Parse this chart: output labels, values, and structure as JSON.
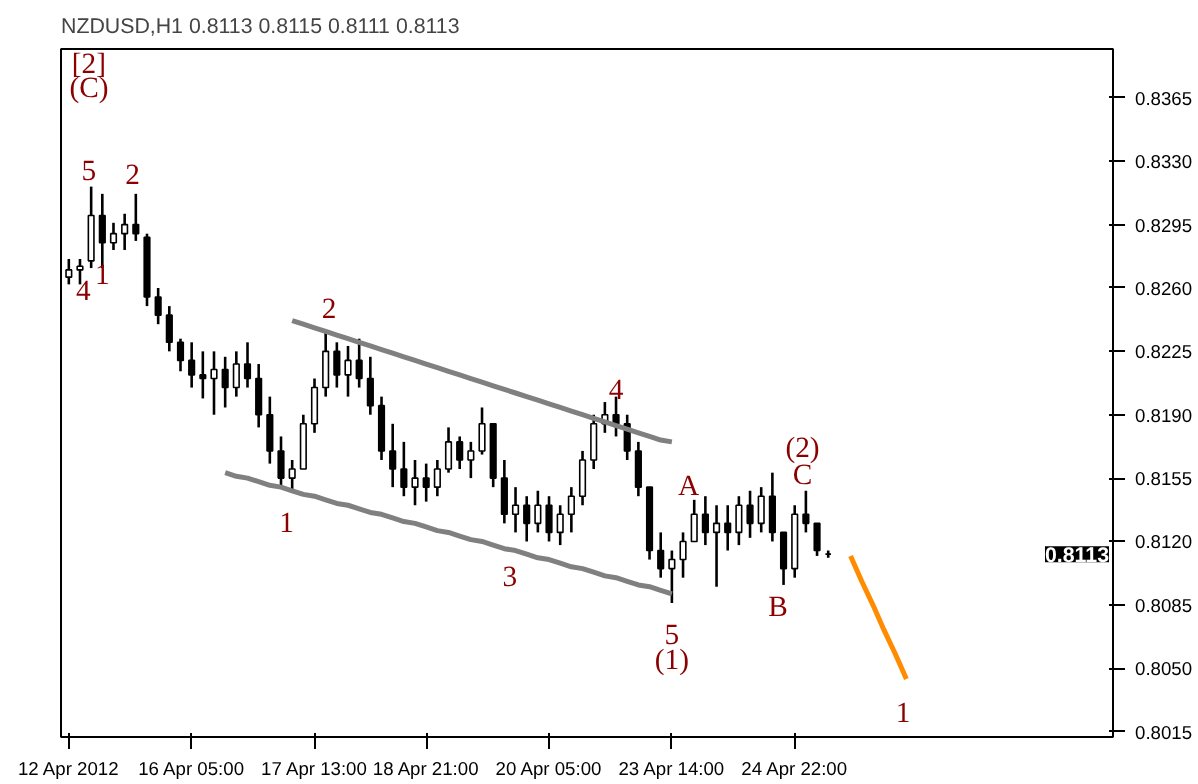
{
  "chart_data": {
    "type": "candlestick",
    "title": "NZDUSD,H1  0.8113 0.8115 0.8111 0.8113",
    "color": "#000000",
    "categories": [
      "12 Apr 2012",
      null,
      null,
      null,
      null,
      null,
      null,
      null,
      null,
      null,
      null,
      "16 Apr 05:00",
      null,
      null,
      null,
      null,
      null,
      null,
      null,
      null,
      null,
      null,
      "17 Apr 13:00",
      null,
      null,
      null,
      null,
      null,
      null,
      null,
      null,
      null,
      "18 Apr 21:00",
      null,
      null,
      null,
      null,
      null,
      null,
      null,
      null,
      null,
      null,
      "20 Apr 05:00",
      null,
      null,
      null,
      null,
      null,
      null,
      null,
      null,
      null,
      null,
      "23 Apr 14:00",
      null,
      null,
      null,
      null,
      null,
      null,
      null,
      null,
      null,
      null,
      "24 Apr 22:00",
      null,
      null,
      null,
      null,
      null,
      null,
      null,
      null,
      null,
      null,
      null,
      null,
      null,
      null,
      null,
      null,
      null,
      null,
      null,
      null,
      null,
      null,
      null,
      null,
      null,
      null,
      null,
      null
    ],
    "ohlc": [
      [
        0.8266,
        0.8276,
        0.8262,
        0.827
      ],
      [
        0.827,
        0.8276,
        0.8262,
        0.8272
      ],
      [
        0.8275,
        0.8316,
        0.8271,
        0.83
      ],
      [
        0.83,
        0.8312,
        0.8271,
        0.8285
      ],
      [
        0.8285,
        0.8296,
        0.8281,
        0.829
      ],
      [
        0.829,
        0.8301,
        0.8281,
        0.8295
      ],
      [
        0.8295,
        0.8312,
        0.8286,
        0.829
      ],
      [
        0.8288,
        0.829,
        0.825,
        0.8255
      ],
      [
        0.8255,
        0.826,
        0.824,
        0.8245
      ],
      [
        0.8245,
        0.825,
        0.8225,
        0.823
      ],
      [
        0.823,
        0.8232,
        0.8214,
        0.822
      ],
      [
        0.822,
        0.823,
        0.8205,
        0.8212
      ],
      [
        0.8212,
        0.8225,
        0.8199,
        0.821
      ],
      [
        0.821,
        0.8225,
        0.819,
        0.8215
      ],
      [
        0.8215,
        0.8222,
        0.8194,
        0.8205
      ],
      [
        0.8205,
        0.8225,
        0.82,
        0.8218
      ],
      [
        0.8218,
        0.823,
        0.8205,
        0.821
      ],
      [
        0.821,
        0.8218,
        0.8183,
        0.819
      ],
      [
        0.819,
        0.82,
        0.8163,
        0.817
      ],
      [
        0.817,
        0.8178,
        0.8149,
        0.8155
      ],
      [
        0.8155,
        0.8165,
        0.8147,
        0.816
      ],
      [
        0.816,
        0.819,
        0.816,
        0.8185
      ],
      [
        0.8185,
        0.821,
        0.818,
        0.8205
      ],
      [
        0.8205,
        0.8236,
        0.82,
        0.8225
      ],
      [
        0.8225,
        0.823,
        0.8205,
        0.8212
      ],
      [
        0.8212,
        0.8228,
        0.82,
        0.822
      ],
      [
        0.822,
        0.8232,
        0.8205,
        0.821
      ],
      [
        0.821,
        0.8222,
        0.819,
        0.8195
      ],
      [
        0.8195,
        0.82,
        0.8165,
        0.817
      ],
      [
        0.817,
        0.8185,
        0.815,
        0.816
      ],
      [
        0.816,
        0.8175,
        0.8145,
        0.815
      ],
      [
        0.815,
        0.8165,
        0.814,
        0.8155
      ],
      [
        0.8155,
        0.8163,
        0.8142,
        0.815
      ],
      [
        0.815,
        0.8165,
        0.8145,
        0.816
      ],
      [
        0.816,
        0.8183,
        0.8158,
        0.8175
      ],
      [
        0.8175,
        0.8178,
        0.816,
        0.8165
      ],
      [
        0.8165,
        0.8175,
        0.8155,
        0.817
      ],
      [
        0.817,
        0.8194,
        0.8168,
        0.8185
      ],
      [
        0.8185,
        0.8185,
        0.815,
        0.8155
      ],
      [
        0.8155,
        0.8165,
        0.813,
        0.8135
      ],
      [
        0.8135,
        0.815,
        0.8125,
        0.814
      ],
      [
        0.814,
        0.8145,
        0.812,
        0.813
      ],
      [
        0.813,
        0.8148,
        0.8125,
        0.814
      ],
      [
        0.814,
        0.8145,
        0.812,
        0.8125
      ],
      [
        0.8125,
        0.814,
        0.8118,
        0.8135
      ],
      [
        0.8135,
        0.815,
        0.8125,
        0.8145
      ],
      [
        0.8145,
        0.817,
        0.814,
        0.8165
      ],
      [
        0.8165,
        0.819,
        0.816,
        0.8185
      ],
      [
        0.8185,
        0.8197,
        0.818,
        0.819
      ],
      [
        0.819,
        0.82,
        0.8178,
        0.8185
      ],
      [
        0.8185,
        0.819,
        0.8165,
        0.817
      ],
      [
        0.817,
        0.8175,
        0.8145,
        0.815
      ],
      [
        0.815,
        0.815,
        0.811,
        0.8115
      ],
      [
        0.8115,
        0.8125,
        0.81,
        0.8105
      ],
      [
        0.8105,
        0.8115,
        0.8086,
        0.811
      ],
      [
        0.811,
        0.8125,
        0.81,
        0.812
      ],
      [
        0.812,
        0.8143,
        0.812,
        0.8135
      ],
      [
        0.8135,
        0.8145,
        0.8118,
        0.8125
      ],
      [
        0.8125,
        0.814,
        0.8095,
        0.813
      ],
      [
        0.813,
        0.814,
        0.8115,
        0.8125
      ],
      [
        0.8125,
        0.8145,
        0.8118,
        0.814
      ],
      [
        0.814,
        0.8148,
        0.8122,
        0.813
      ],
      [
        0.813,
        0.815,
        0.8125,
        0.8145
      ],
      [
        0.8145,
        0.8158,
        0.812,
        0.8125
      ],
      [
        0.8125,
        0.8125,
        0.8096,
        0.8105
      ],
      [
        0.8105,
        0.814,
        0.81,
        0.8135
      ],
      [
        0.8135,
        0.8148,
        0.8125,
        0.813
      ],
      [
        0.813,
        0.813,
        0.8112,
        0.8115
      ],
      [
        0.8113,
        0.8115,
        0.8111,
        0.8113
      ],
      null,
      null,
      null,
      null,
      null,
      null,
      null,
      null,
      null,
      null,
      null,
      null,
      null,
      null,
      null,
      null,
      null,
      null,
      null,
      null,
      null,
      null,
      null,
      null,
      null
    ],
    "series": [
      {
        "type": "line",
        "color": "#808080",
        "values": [
          null,
          null,
          null,
          null,
          null,
          null,
          null,
          null,
          null,
          null,
          null,
          null,
          null,
          null,
          null,
          null,
          null,
          null,
          null,
          null,
          0.8242,
          0.824,
          0.8238,
          0.8236,
          0.8234,
          0.8232,
          0.823,
          0.8228,
          0.8226,
          0.8224,
          0.8222,
          0.822,
          0.8218,
          0.8216,
          0.8214,
          0.8212,
          0.821,
          0.8208,
          0.8206,
          0.8204,
          0.8202,
          0.82,
          0.8198,
          0.8196,
          0.8194,
          0.8192,
          0.819,
          0.8188,
          0.8186,
          0.8184,
          0.8182,
          0.818,
          0.8178,
          0.8176,
          0.8175,
          null,
          null,
          null,
          null,
          null,
          null,
          null,
          null,
          null,
          null,
          null,
          null,
          null,
          null,
          null,
          null,
          null,
          null,
          null,
          null,
          null,
          null,
          null,
          null,
          null,
          null,
          null,
          null,
          null,
          null,
          null,
          null,
          null,
          null,
          null,
          null,
          null,
          null,
          null
        ]
      },
      {
        "type": "line",
        "color": "#808080",
        "values": [
          null,
          null,
          null,
          null,
          null,
          null,
          null,
          null,
          null,
          null,
          null,
          null,
          null,
          null,
          0.8158,
          0.8156,
          0.8155,
          0.8153,
          0.8151,
          0.815,
          0.8148,
          0.8146,
          0.8145,
          0.8143,
          0.8141,
          0.814,
          0.8138,
          0.8136,
          0.8135,
          0.8133,
          0.8131,
          0.813,
          0.8128,
          0.8126,
          0.8125,
          0.8123,
          0.8121,
          0.812,
          0.8118,
          0.8116,
          0.8115,
          0.8113,
          0.8111,
          0.811,
          0.8108,
          0.8106,
          0.8105,
          0.8103,
          0.8101,
          0.81,
          0.8098,
          0.8096,
          0.8095,
          0.8093,
          0.8091,
          null,
          null,
          null,
          null,
          null,
          null,
          null,
          null,
          null,
          null,
          null,
          null,
          null,
          null,
          null,
          null,
          null,
          null,
          null,
          null,
          null,
          null,
          null,
          null,
          null,
          null,
          null,
          null,
          null,
          null,
          null,
          null,
          null,
          null,
          null,
          null,
          null,
          null,
          null
        ]
      },
      {
        "type": "line",
        "color": "#ff8c00",
        "values": [
          null,
          null,
          null,
          null,
          null,
          null,
          null,
          null,
          null,
          null,
          null,
          null,
          null,
          null,
          null,
          null,
          null,
          null,
          null,
          null,
          null,
          null,
          null,
          null,
          null,
          null,
          null,
          null,
          null,
          null,
          null,
          null,
          null,
          null,
          null,
          null,
          null,
          null,
          null,
          null,
          null,
          null,
          null,
          null,
          null,
          null,
          null,
          null,
          null,
          null,
          null,
          null,
          null,
          null,
          null,
          null,
          null,
          null,
          null,
          null,
          null,
          null,
          null,
          null,
          null,
          null,
          null,
          null,
          null,
          null,
          0.8112,
          0.8098,
          0.8085,
          0.8071,
          0.8058,
          0.8044,
          null,
          null,
          null,
          null,
          null,
          null,
          null,
          null,
          null,
          null,
          null,
          null,
          null,
          null,
          null,
          null,
          null,
          null
        ]
      }
    ],
    "ylim": [
      0.8012,
      0.8392
    ],
    "yticks": [
      {
        "value": 0.8015,
        "label": "0.8015"
      },
      {
        "value": 0.805,
        "label": "0.8050"
      },
      {
        "value": 0.8085,
        "label": "0.8085"
      },
      {
        "value": 0.812,
        "label": "0.8120"
      },
      {
        "value": 0.8155,
        "label": "0.8155"
      },
      {
        "value": 0.819,
        "label": "0.8190"
      },
      {
        "value": 0.8225,
        "label": "0.8225"
      },
      {
        "value": 0.826,
        "label": "0.8260"
      },
      {
        "value": 0.8295,
        "label": "0.8295"
      },
      {
        "value": 0.833,
        "label": "0.8330"
      },
      {
        "value": 0.8365,
        "label": "0.8365"
      }
    ],
    "annotations": [
      "[2]",
      "(C)",
      "5",
      "2",
      "1",
      "4",
      "1",
      "2",
      "3",
      "4",
      "5",
      "(1)",
      "A",
      "(2)",
      "C",
      "B",
      "1",
      "0.8113"
    ]
  }
}
